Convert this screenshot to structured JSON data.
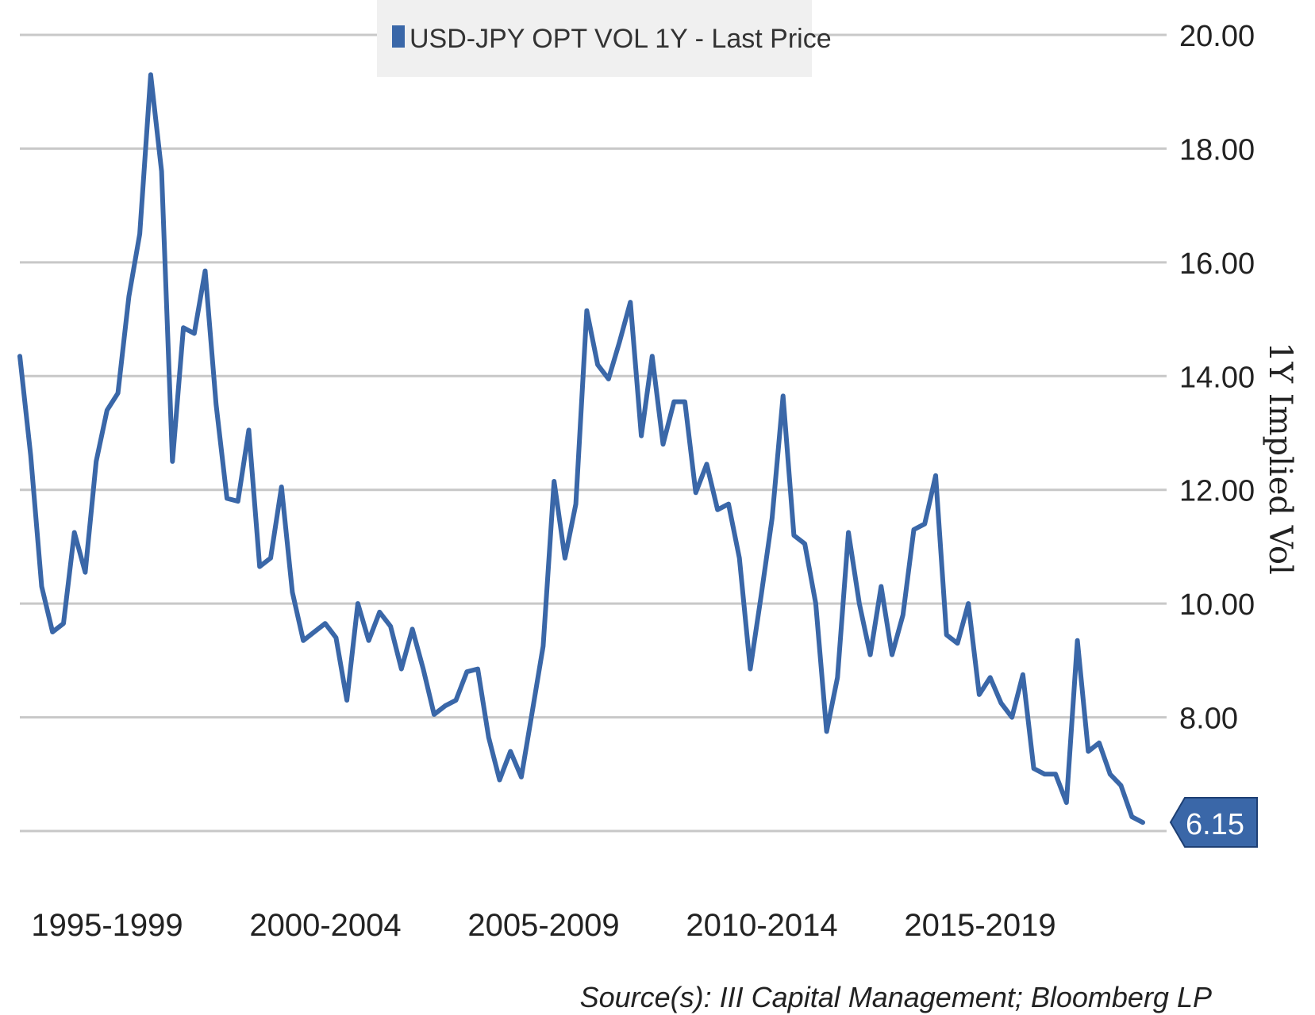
{
  "chart_data": {
    "type": "line",
    "title": "",
    "legend": {
      "label": "USD-JPY OPT VOL 1Y - Last Price",
      "placement": "top-center"
    },
    "ylabel": "1Y Implied Vol",
    "xlabel": "",
    "ylim": [
      6,
      20
    ],
    "yticks": [
      "20.00",
      "18.00",
      "16.00",
      "14.00",
      "12.00",
      "10.00",
      "8.00"
    ],
    "xtick_labels": [
      "1995-1999",
      "2000-2004",
      "2005-2009",
      "2010-2014",
      "2015-2019"
    ],
    "grid": true,
    "y_axis_side": "right",
    "series": [
      {
        "name": "USD-JPY OPT VOL 1Y - Last Price",
        "color": "#3A67A8",
        "values": [
          14.35,
          12.6,
          10.3,
          9.5,
          9.65,
          11.25,
          10.55,
          12.5,
          13.4,
          13.7,
          15.4,
          16.5,
          19.3,
          17.6,
          12.5,
          14.85,
          14.75,
          15.85,
          13.5,
          11.85,
          11.8,
          13.05,
          10.65,
          10.8,
          12.05,
          10.2,
          9.35,
          9.5,
          9.65,
          9.4,
          8.3,
          10.0,
          9.35,
          9.85,
          9.6,
          8.85,
          9.55,
          8.85,
          8.05,
          8.2,
          8.3,
          8.8,
          8.85,
          7.65,
          6.9,
          7.4,
          6.95,
          8.1,
          9.25,
          12.15,
          10.8,
          11.75,
          15.15,
          14.2,
          13.95,
          14.6,
          15.3,
          12.95,
          14.35,
          12.8,
          13.55,
          13.55,
          11.95,
          12.45,
          11.65,
          11.75,
          10.8,
          8.85,
          10.15,
          11.5,
          13.65,
          11.2,
          11.05,
          10.0,
          7.75,
          8.7,
          11.25,
          10.0,
          9.1,
          10.3,
          9.1,
          9.8,
          11.3,
          11.4,
          12.25,
          9.45,
          9.3,
          10.0,
          8.4,
          8.7,
          8.25,
          8.0,
          8.75,
          7.1,
          7.0,
          7.0,
          6.5,
          9.35,
          7.4,
          7.55,
          7.0,
          6.8,
          6.25,
          6.15
        ]
      }
    ],
    "last_value_label": "6.15",
    "source": "Source(s): III Capital Management; Bloomberg LP"
  }
}
